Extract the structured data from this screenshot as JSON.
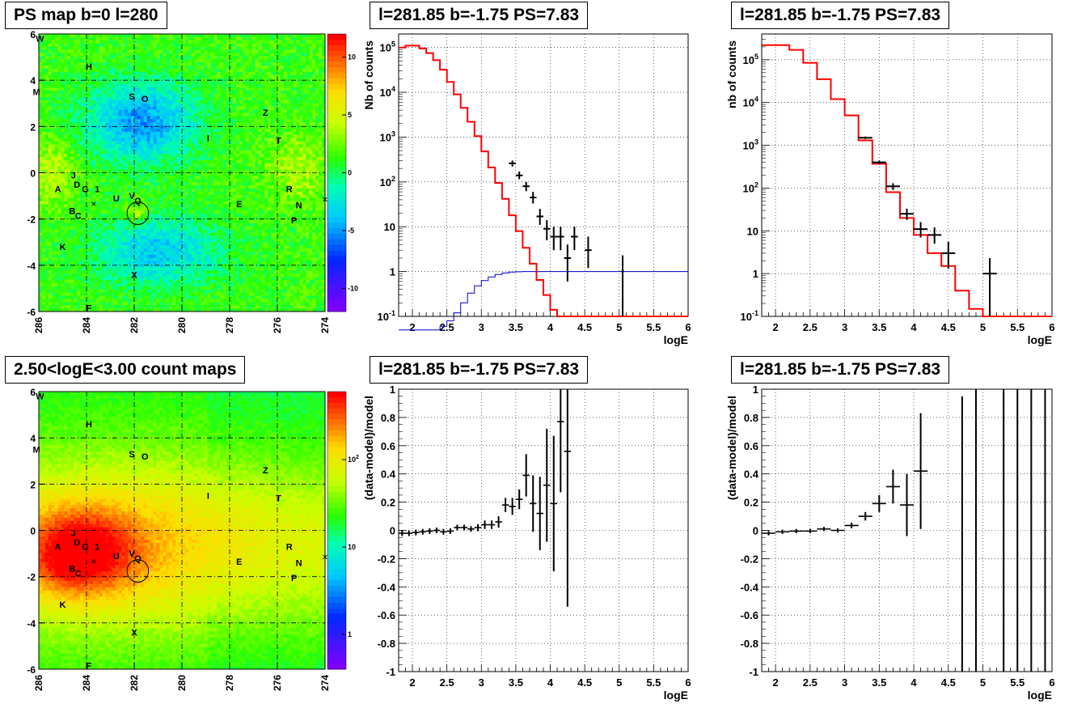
{
  "titles": {
    "map_top": "PS map b=0 l=280",
    "spec_left": "l=281.85 b=-1.75 PS=7.83",
    "spec_right": "l=281.85 b=-1.75 PS=7.83",
    "map_bottom": "2.50<logE<3.00 count maps",
    "res_left": "l=281.85 b=-1.75 PS=7.83",
    "res_right": "l=281.85 b=-1.75 PS=7.83"
  },
  "colors": {
    "model": "#ff0000",
    "efficiency": "#0000cc",
    "data": "#000000"
  },
  "chart_data": [
    {
      "id": "ps_map",
      "type": "heatmap",
      "title": "PS map b=0 l=280",
      "xlim": [
        286,
        274
      ],
      "ylim": [
        -6,
        6
      ],
      "xticks": [
        "286",
        "284",
        "282",
        "280",
        "278",
        "276",
        "274"
      ],
      "yticks": [
        "-6",
        "-4",
        "-2",
        "0",
        "2",
        "4",
        "6"
      ],
      "colorbar": {
        "range": [
          -12,
          12
        ],
        "ticks": [
          "-10",
          "-5",
          "0",
          "5",
          "10"
        ]
      },
      "source_labels": [
        {
          "t": "W",
          "l": 285.95,
          "b": 5.8
        },
        {
          "t": "H",
          "l": 283.9,
          "b": 4.6
        },
        {
          "t": "M",
          "l": 286.1,
          "b": 3.5
        },
        {
          "t": "S",
          "l": 282.1,
          "b": 3.3
        },
        {
          "t": "O",
          "l": 281.55,
          "b": 3.2
        },
        {
          "t": "Z",
          "l": 276.5,
          "b": 2.6
        },
        {
          "t": "I",
          "l": 278.9,
          "b": 1.5
        },
        {
          "t": "T",
          "l": 275.95,
          "b": 1.4
        },
        {
          "t": "J",
          "l": 284.55,
          "b": -0.1
        },
        {
          "t": "D",
          "l": 284.4,
          "b": -0.5
        },
        {
          "t": "A",
          "l": 285.2,
          "b": -0.7
        },
        {
          "t": "G",
          "l": 284.05,
          "b": -0.7
        },
        {
          "t": "1",
          "l": 283.55,
          "b": -0.7
        },
        {
          "t": "U",
          "l": 282.75,
          "b": -1.1
        },
        {
          "t": "V",
          "l": 282.1,
          "b": -1.0
        },
        {
          "t": "Q",
          "l": 281.85,
          "b": -1.2
        },
        {
          "t": "R",
          "l": 275.5,
          "b": -0.7
        },
        {
          "t": "E",
          "l": 277.6,
          "b": -1.35
        },
        {
          "t": "N",
          "l": 275.1,
          "b": -1.4
        },
        {
          "t": "B",
          "l": 284.6,
          "b": -1.65
        },
        {
          "t": "C",
          "l": 284.35,
          "b": -1.85
        },
        {
          "t": "P",
          "l": 275.3,
          "b": -2.05
        },
        {
          "t": "K",
          "l": 285.0,
          "b": -3.2
        },
        {
          "t": "X",
          "l": 282.0,
          "b": -4.4
        },
        {
          "t": "F",
          "l": 283.9,
          "b": -5.85
        }
      ],
      "markers": [
        {
          "l": 283.7,
          "b": -1.35
        },
        {
          "l": 274.0,
          "b": -1.15
        }
      ],
      "circle": {
        "l": 281.85,
        "b": -1.75,
        "r": 0.45
      }
    },
    {
      "id": "spectrum_left",
      "type": "line",
      "title": "l=281.85 b=-1.75 PS=7.83",
      "xlabel": "logE",
      "ylabel": "Nb of counts",
      "xlim": [
        1.8,
        6.0
      ],
      "ylim": [
        0.1,
        200000
      ],
      "yscale": "log",
      "xticks": [
        "2",
        "2.5",
        "3",
        "3.5",
        "4",
        "4.5",
        "5",
        "5.5",
        "6"
      ],
      "yticks": [
        "10^-1",
        "1",
        "10",
        "10^2",
        "10^3",
        "10^4",
        "10^5"
      ],
      "grid": true,
      "model_edges": [
        1.8,
        1.9,
        2.0,
        2.1,
        2.2,
        2.3,
        2.4,
        2.5,
        2.6,
        2.7,
        2.8,
        2.9,
        3.0,
        3.1,
        3.2,
        3.3,
        3.4,
        3.5,
        3.6,
        3.7,
        3.8,
        3.9,
        4.0,
        4.1,
        4.2,
        4.3,
        4.4,
        4.5,
        4.6,
        4.7,
        4.8,
        4.9,
        5.0,
        5.1,
        5.2,
        5.3,
        5.4,
        5.5,
        5.6,
        5.7,
        5.8,
        5.9,
        6.0
      ],
      "model_values": [
        100000,
        110000,
        110000,
        95000,
        75000,
        52000,
        32000,
        17000,
        9000,
        4500,
        2200,
        1050,
        480,
        210,
        95,
        42,
        18,
        8,
        3.4,
        1.5,
        0.65,
        0.3,
        0.14,
        0.1,
        0.1,
        0.1,
        0.1,
        0.1,
        0.1,
        0.1,
        0.1,
        0.1,
        0.1,
        0.1,
        0.1,
        0.1,
        0.1,
        0.1,
        0.1,
        0.1,
        0.1,
        0.1
      ],
      "efficiency_edges": [
        1.8,
        1.9,
        2.0,
        2.1,
        2.2,
        2.3,
        2.4,
        2.5,
        2.6,
        2.7,
        2.8,
        2.9,
        3.0,
        3.1,
        3.2,
        3.3,
        3.4,
        3.5,
        3.6,
        3.7,
        3.8,
        3.9,
        4.0,
        4.1,
        4.2,
        4.3,
        4.4,
        4.5,
        4.6,
        4.7,
        4.8,
        4.9,
        5.0,
        5.1,
        5.2,
        5.3,
        5.4,
        5.5,
        5.6,
        5.7,
        5.8,
        5.9,
        6.0
      ],
      "efficiency_values": [
        0.05,
        0.05,
        0.05,
        0.05,
        0.05,
        0.05,
        0.06,
        0.08,
        0.12,
        0.2,
        0.33,
        0.48,
        0.63,
        0.76,
        0.86,
        0.93,
        0.97,
        0.99,
        1,
        1,
        1,
        1,
        1,
        1,
        1,
        1,
        1,
        1,
        1,
        1,
        1,
        1,
        1,
        1,
        1,
        1,
        1,
        1,
        1,
        1,
        1,
        1
      ],
      "data": [
        {
          "x": 3.45,
          "y": 260,
          "lo": 220,
          "hi": 300,
          "xerr": 0.05
        },
        {
          "x": 3.55,
          "y": 140,
          "lo": 115,
          "hi": 170,
          "xerr": 0.05
        },
        {
          "x": 3.65,
          "y": 80,
          "lo": 62,
          "hi": 100,
          "xerr": 0.05
        },
        {
          "x": 3.75,
          "y": 45,
          "lo": 33,
          "hi": 60,
          "xerr": 0.05
        },
        {
          "x": 3.85,
          "y": 17,
          "lo": 11,
          "hi": 25,
          "xerr": 0.05
        },
        {
          "x": 3.95,
          "y": 9,
          "lo": 5,
          "hi": 14,
          "xerr": 0.05
        },
        {
          "x": 4.05,
          "y": 6,
          "lo": 3,
          "hi": 10,
          "xerr": 0.05
        },
        {
          "x": 4.15,
          "y": 6,
          "lo": 3,
          "hi": 10,
          "xerr": 0.05
        },
        {
          "x": 4.25,
          "y": 2,
          "lo": 0.6,
          "hi": 4,
          "xerr": 0.05
        },
        {
          "x": 4.35,
          "y": 6,
          "lo": 3,
          "hi": 10,
          "xerr": 0.05
        },
        {
          "x": 4.55,
          "y": 3,
          "lo": 1.2,
          "hi": 6,
          "xerr": 0.05
        },
        {
          "x": 5.05,
          "y": 1,
          "lo": 0.1,
          "hi": 2.3,
          "xerr": 0.02
        }
      ]
    },
    {
      "id": "spectrum_right",
      "type": "line",
      "title": "l=281.85 b=-1.75 PS=7.83",
      "xlabel": "logE",
      "ylabel": "nb of counts",
      "xlim": [
        1.8,
        6.0
      ],
      "ylim": [
        0.1,
        400000
      ],
      "yscale": "log",
      "xticks": [
        "2",
        "2.5",
        "3",
        "3.5",
        "4",
        "4.5",
        "5",
        "5.5",
        "6"
      ],
      "yticks": [
        "10^-1",
        "1",
        "10",
        "10^2",
        "10^3",
        "10^4",
        "10^5"
      ],
      "grid": true,
      "model_edges": [
        1.8,
        2.0,
        2.2,
        2.4,
        2.6,
        2.8,
        3.0,
        3.2,
        3.4,
        3.6,
        3.8,
        4.0,
        4.2,
        4.4,
        4.6,
        4.8,
        5.0,
        5.2,
        5.4,
        5.6,
        5.8,
        6.0
      ],
      "model_values": [
        220000,
        220000,
        170000,
        85000,
        35000,
        12000,
        5000,
        1300,
        370,
        80,
        20,
        8,
        3,
        1.5,
        0.4,
        0.15,
        0.1,
        0.1,
        0.1,
        0.1,
        0.1
      ],
      "data": [
        {
          "x": 3.3,
          "y": 1500,
          "lo": 1400,
          "hi": 1600,
          "xerr": 0.1
        },
        {
          "x": 3.5,
          "y": 400,
          "lo": 360,
          "hi": 440,
          "xerr": 0.1
        },
        {
          "x": 3.7,
          "y": 110,
          "lo": 90,
          "hi": 130,
          "xerr": 0.1
        },
        {
          "x": 3.9,
          "y": 25,
          "lo": 18,
          "hi": 33,
          "xerr": 0.1
        },
        {
          "x": 4.1,
          "y": 11,
          "lo": 7,
          "hi": 16,
          "xerr": 0.1
        },
        {
          "x": 4.3,
          "y": 8,
          "lo": 5,
          "hi": 12,
          "xerr": 0.1
        },
        {
          "x": 4.5,
          "y": 3,
          "lo": 1.3,
          "hi": 5.5,
          "xerr": 0.1
        },
        {
          "x": 5.1,
          "y": 1,
          "lo": 0.1,
          "hi": 2.3,
          "xerr": 0.1
        }
      ]
    },
    {
      "id": "count_map",
      "type": "heatmap",
      "title": "2.50<logE<3.00 count maps",
      "xlim": [
        286,
        274
      ],
      "ylim": [
        -6,
        6
      ],
      "xticks": [
        "286",
        "284",
        "282",
        "280",
        "278",
        "276",
        "274"
      ],
      "yticks": [
        "-6",
        "-4",
        "-2",
        "0",
        "2",
        "4",
        "6"
      ],
      "colorbar": {
        "scale": "log",
        "range": [
          0.4,
          600
        ],
        "ticks": [
          "1",
          "10",
          "10^2"
        ]
      },
      "source_labels": [
        {
          "t": "W",
          "l": 285.95,
          "b": 5.8
        },
        {
          "t": "H",
          "l": 283.9,
          "b": 4.6
        },
        {
          "t": "M",
          "l": 286.1,
          "b": 3.5
        },
        {
          "t": "S",
          "l": 282.1,
          "b": 3.3
        },
        {
          "t": "O",
          "l": 281.55,
          "b": 3.2
        },
        {
          "t": "Z",
          "l": 276.5,
          "b": 2.6
        },
        {
          "t": "I",
          "l": 278.9,
          "b": 1.5
        },
        {
          "t": "T",
          "l": 275.95,
          "b": 1.4
        },
        {
          "t": "J",
          "l": 284.55,
          "b": -0.1
        },
        {
          "t": "D",
          "l": 284.4,
          "b": -0.5
        },
        {
          "t": "A",
          "l": 285.2,
          "b": -0.7
        },
        {
          "t": "G",
          "l": 284.05,
          "b": -0.7
        },
        {
          "t": "1",
          "l": 283.55,
          "b": -0.7
        },
        {
          "t": "U",
          "l": 282.75,
          "b": -1.1
        },
        {
          "t": "V",
          "l": 282.1,
          "b": -1.0
        },
        {
          "t": "Q",
          "l": 281.85,
          "b": -1.2
        },
        {
          "t": "R",
          "l": 275.5,
          "b": -0.7
        },
        {
          "t": "E",
          "l": 277.6,
          "b": -1.35
        },
        {
          "t": "N",
          "l": 275.1,
          "b": -1.4
        },
        {
          "t": "B",
          "l": 284.6,
          "b": -1.65
        },
        {
          "t": "C",
          "l": 284.35,
          "b": -1.85
        },
        {
          "t": "P",
          "l": 275.3,
          "b": -2.05
        },
        {
          "t": "K",
          "l": 285.0,
          "b": -3.2
        },
        {
          "t": "X",
          "l": 282.0,
          "b": -4.4
        },
        {
          "t": "F",
          "l": 283.9,
          "b": -5.85
        }
      ],
      "markers": [
        {
          "l": 283.7,
          "b": -1.35
        },
        {
          "l": 274.0,
          "b": -1.15
        }
      ],
      "circle": {
        "l": 281.85,
        "b": -1.75,
        "r": 0.45
      }
    },
    {
      "id": "residual_left",
      "type": "scatter",
      "title": "l=281.85 b=-1.75 PS=7.83",
      "xlabel": "logE",
      "ylabel": "(data-model)/model",
      "xlim": [
        1.8,
        6.0
      ],
      "ylim": [
        -1,
        1
      ],
      "xticks": [
        "2",
        "2.5",
        "3",
        "3.5",
        "4",
        "4.5",
        "5",
        "5.5",
        "6"
      ],
      "yticks": [
        "-1",
        "-0.8",
        "-0.6",
        "-0.4",
        "-0.2",
        "0",
        "0.2",
        "0.4",
        "0.6",
        "0.8",
        "1"
      ],
      "grid": true,
      "data": [
        {
          "x": 1.85,
          "y": -0.02,
          "err": 0.02
        },
        {
          "x": 1.95,
          "y": -0.02,
          "err": 0.02
        },
        {
          "x": 2.05,
          "y": -0.015,
          "err": 0.02
        },
        {
          "x": 2.15,
          "y": -0.01,
          "err": 0.02
        },
        {
          "x": 2.25,
          "y": -0.005,
          "err": 0.02
        },
        {
          "x": 2.35,
          "y": 0.0,
          "err": 0.02
        },
        {
          "x": 2.45,
          "y": -0.01,
          "err": 0.02
        },
        {
          "x": 2.55,
          "y": -0.005,
          "err": 0.02
        },
        {
          "x": 2.65,
          "y": 0.02,
          "err": 0.02
        },
        {
          "x": 2.75,
          "y": 0.02,
          "err": 0.02
        },
        {
          "x": 2.85,
          "y": 0.01,
          "err": 0.02
        },
        {
          "x": 2.95,
          "y": 0.02,
          "err": 0.025
        },
        {
          "x": 3.05,
          "y": 0.04,
          "err": 0.03
        },
        {
          "x": 3.15,
          "y": 0.04,
          "err": 0.03
        },
        {
          "x": 3.25,
          "y": 0.06,
          "err": 0.04
        },
        {
          "x": 3.35,
          "y": 0.18,
          "err": 0.05
        },
        {
          "x": 3.45,
          "y": 0.17,
          "err": 0.06
        },
        {
          "x": 3.55,
          "y": 0.22,
          "err": 0.07
        },
        {
          "x": 3.65,
          "y": 0.39,
          "err": 0.15
        },
        {
          "x": 3.75,
          "y": 0.19,
          "err": 0.2
        },
        {
          "x": 3.85,
          "y": 0.12,
          "err": 0.26
        },
        {
          "x": 3.95,
          "y": 0.32,
          "err": 0.4
        },
        {
          "x": 4.05,
          "y": 0.19,
          "err": 0.48
        },
        {
          "x": 4.15,
          "y": 0.77,
          "err": 0.5
        },
        {
          "x": 4.25,
          "y": 0.56,
          "err": 1.1
        }
      ]
    },
    {
      "id": "residual_right",
      "type": "scatter",
      "title": "l=281.85 b=-1.75 PS=7.83",
      "xlabel": "logE",
      "ylabel": "(data-model)/model",
      "xlim": [
        1.8,
        6.0
      ],
      "ylim": [
        -1,
        1
      ],
      "xticks": [
        "2",
        "2.5",
        "3",
        "3.5",
        "4",
        "4.5",
        "5",
        "5.5",
        "6"
      ],
      "yticks": [
        "-1",
        "-0.8",
        "-0.6",
        "-0.4",
        "-0.2",
        "0",
        "0.2",
        "0.4",
        "0.6",
        "0.8",
        "1"
      ],
      "grid": true,
      "data": [
        {
          "x": 1.9,
          "y": -0.02,
          "err": 0.015,
          "xerr": 0.1
        },
        {
          "x": 2.1,
          "y": -0.01,
          "err": 0.015,
          "xerr": 0.1
        },
        {
          "x": 2.3,
          "y": -0.005,
          "err": 0.015,
          "xerr": 0.1
        },
        {
          "x": 2.5,
          "y": -0.005,
          "err": 0.015,
          "xerr": 0.1
        },
        {
          "x": 2.7,
          "y": 0.01,
          "err": 0.015,
          "xerr": 0.1
        },
        {
          "x": 2.9,
          "y": 0.0,
          "err": 0.015,
          "xerr": 0.1
        },
        {
          "x": 3.1,
          "y": 0.035,
          "err": 0.02,
          "xerr": 0.1
        },
        {
          "x": 3.3,
          "y": 0.1,
          "err": 0.03,
          "xerr": 0.1
        },
        {
          "x": 3.5,
          "y": 0.19,
          "err": 0.06,
          "xerr": 0.1
        },
        {
          "x": 3.7,
          "y": 0.31,
          "err": 0.12,
          "xerr": 0.1
        },
        {
          "x": 3.9,
          "y": 0.18,
          "err": 0.22,
          "xerr": 0.1
        },
        {
          "x": 4.1,
          "y": 0.42,
          "err": 0.41,
          "xerr": 0.1
        },
        {
          "x": 4.7,
          "y": -0.05,
          "err": 1.0,
          "xerr": 0.0
        },
        {
          "x": 4.9,
          "y": 0.0,
          "err": 1.0,
          "xerr": 0.0
        },
        {
          "x": 5.3,
          "y": 0.0,
          "err": 1.0,
          "xerr": 0.0
        },
        {
          "x": 5.5,
          "y": 0.0,
          "err": 1.0,
          "xerr": 0.0
        },
        {
          "x": 5.7,
          "y": 0.0,
          "err": 1.0,
          "xerr": 0.0
        },
        {
          "x": 5.9,
          "y": 0.0,
          "err": 1.0,
          "xerr": 0.0
        }
      ]
    }
  ]
}
